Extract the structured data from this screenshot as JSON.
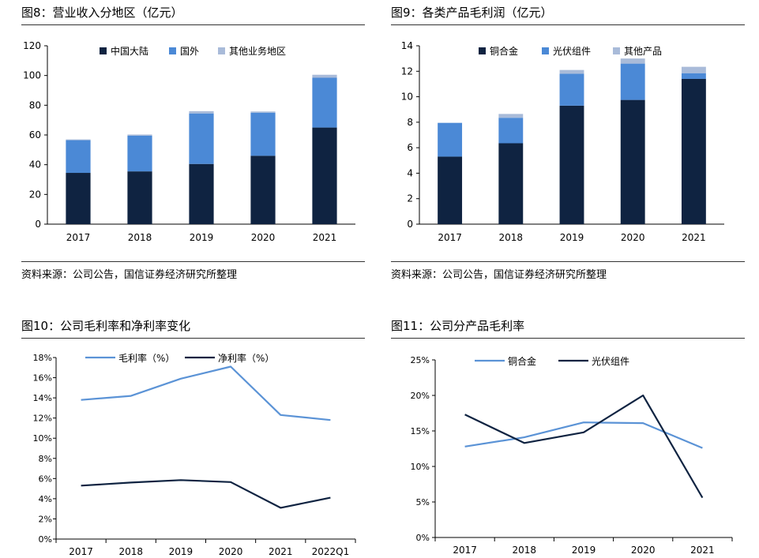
{
  "colors": {
    "navy": "#0f2341",
    "blue": "#4b89d6",
    "lightblue": "#a9bbd9",
    "rule": "#333333"
  },
  "charts": [
    {
      "title": "图8：营业收入分地区（亿元）",
      "source": "资料来源：公司公告，国信证券经济研究所整理",
      "chart_data": {
        "type": "bar",
        "stacked": true,
        "categories": [
          "2017",
          "2018",
          "2019",
          "2020",
          "2021"
        ],
        "series": [
          {
            "name": "中国大陆",
            "color": "#0f2341",
            "values": [
              34.5,
              35.5,
              40.5,
              46.0,
              65.0
            ]
          },
          {
            "name": "国外",
            "color": "#4b89d6",
            "values": [
              22.0,
              24.0,
              34.0,
              29.0,
              33.5
            ]
          },
          {
            "name": "其他业务地区",
            "color": "#a9bbd9",
            "values": [
              0.5,
              0.8,
              1.5,
              0.8,
              2.0
            ]
          }
        ],
        "ylim": [
          0,
          120
        ],
        "yticks": [
          0,
          20,
          40,
          60,
          80,
          100,
          120
        ],
        "legend": "top"
      }
    },
    {
      "title": "图9：各类产品毛利润（亿元）",
      "source": "资料来源：公司公告，国信证券经济研究所整理",
      "chart_data": {
        "type": "bar",
        "stacked": true,
        "categories": [
          "2017",
          "2018",
          "2019",
          "2020",
          "2021"
        ],
        "series": [
          {
            "name": "铜合金",
            "color": "#0f2341",
            "values": [
              5.3,
              6.35,
              9.3,
              9.75,
              11.4
            ]
          },
          {
            "name": "光伏组件",
            "color": "#4b89d6",
            "values": [
              2.65,
              2.0,
              2.5,
              2.85,
              0.45
            ]
          },
          {
            "name": "其他产品",
            "color": "#a9bbd9",
            "values": [
              0.0,
              0.3,
              0.3,
              0.4,
              0.5
            ]
          }
        ],
        "ylim": [
          0,
          14
        ],
        "yticks": [
          0,
          2,
          4,
          6,
          8,
          10,
          12,
          14
        ],
        "legend": "top"
      }
    },
    {
      "title": "图10：公司毛利率和净利率变化",
      "chart_data": {
        "type": "line",
        "categories": [
          "2017",
          "2018",
          "2019",
          "2020",
          "2021",
          "2022Q1"
        ],
        "series": [
          {
            "name": "毛利率（%）",
            "color": "#5b93d6",
            "values": [
              13.8,
              14.2,
              15.9,
              17.1,
              12.3,
              11.8
            ]
          },
          {
            "name": "净利率（%）",
            "color": "#0f2341",
            "values": [
              5.3,
              5.6,
              5.85,
              5.65,
              3.1,
              4.1
            ]
          }
        ],
        "ylim": [
          0,
          18
        ],
        "yticks": [
          "0%",
          "2%",
          "4%",
          "6%",
          "8%",
          "10%",
          "12%",
          "14%",
          "16%",
          "18%"
        ],
        "legend": "top"
      }
    },
    {
      "title": "图11：公司分产品毛利率",
      "chart_data": {
        "type": "line",
        "categories": [
          "2017",
          "2018",
          "2019",
          "2020",
          "2021"
        ],
        "series": [
          {
            "name": "铜合金",
            "color": "#5b93d6",
            "values": [
              12.8,
              14.1,
              16.2,
              16.1,
              12.6
            ]
          },
          {
            "name": "光伏组件",
            "color": "#0f2341",
            "values": [
              17.3,
              13.3,
              14.8,
              20.0,
              5.6
            ]
          }
        ],
        "ylim": [
          0,
          25
        ],
        "yticks": [
          "0%",
          "5%",
          "10%",
          "15%",
          "20%",
          "25%"
        ],
        "legend": "top"
      }
    }
  ]
}
